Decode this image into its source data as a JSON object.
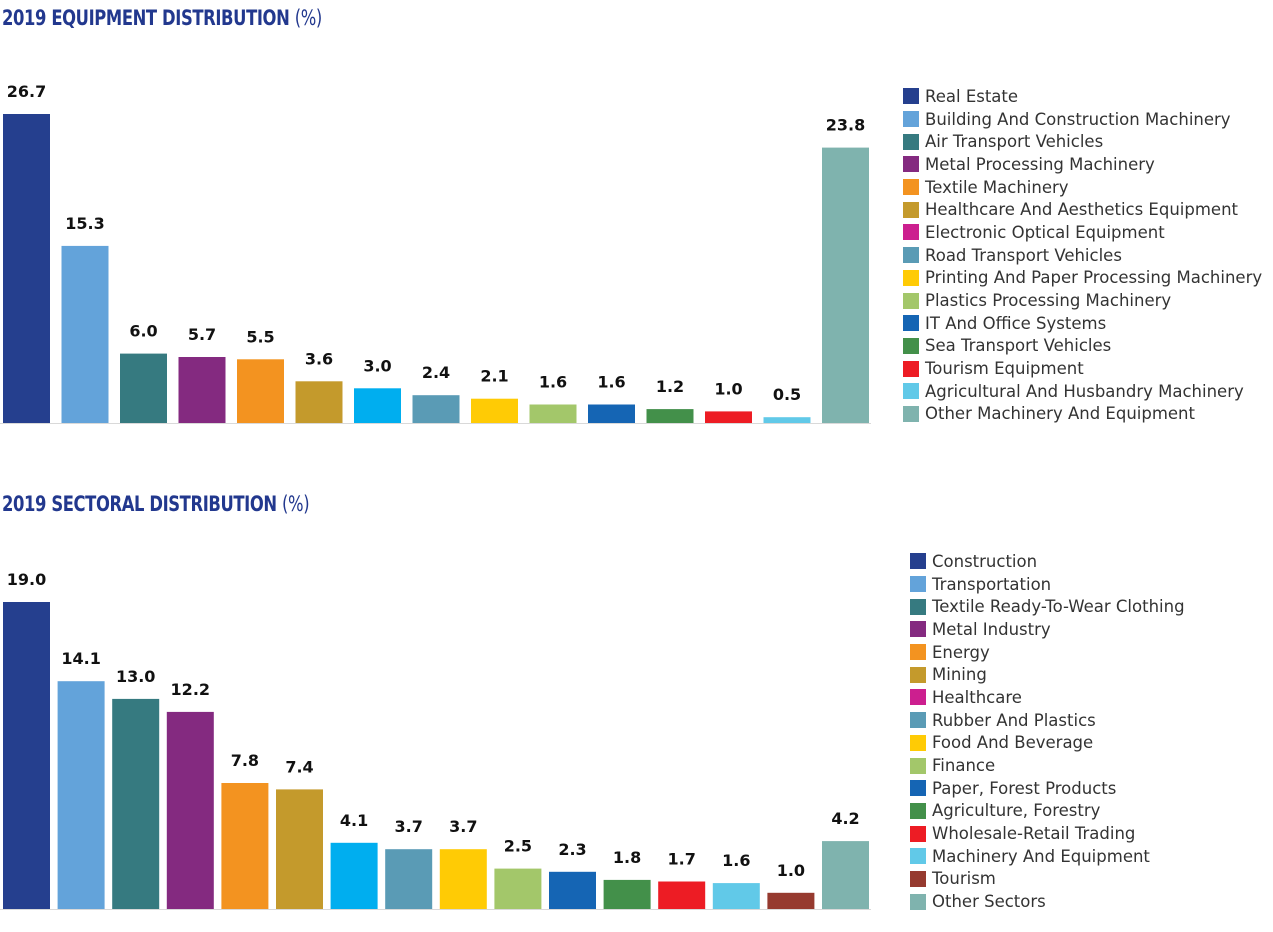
{
  "chart_data": [
    {
      "type": "bar",
      "title": "2019 EQUIPMENT DISTRIBUTION",
      "title_unit": "(%)",
      "categories": [
        "Real Estate",
        "Building And Construction Machinery",
        "Air Transport Vehicles",
        "Metal Processing Machinery",
        "Textile Machinery",
        "Healthcare And Aesthetics Equipment",
        "Electronic Optical Equipment",
        "Road Transport Vehicles",
        "Printing And Paper Processing Machinery",
        "Plastics Processing Machinery",
        "IT And Office Systems",
        "Sea Transport Vehicles",
        "Tourism Equipment",
        "Agricultural And Husbandry Machinery",
        "Other Machinery And Equipment"
      ],
      "values": [
        26.7,
        15.3,
        6.0,
        5.7,
        5.5,
        3.6,
        3.0,
        2.4,
        2.1,
        1.6,
        1.6,
        1.2,
        1.0,
        0.5,
        23.8
      ],
      "value_labels": [
        "26.7",
        "15.3",
        "6.0",
        "5.7",
        "5.5",
        "3.6",
        "3.0",
        "2.4",
        "2.1",
        "1.6",
        "1.6",
        "1.2",
        "1.0",
        "0.5",
        "23.8"
      ],
      "bar_colors": [
        "#253f8e",
        "#63a3da",
        "#367a80",
        "#842a80",
        "#f39320",
        "#c49a2c",
        "#00aeef",
        "#5a9bb5",
        "#ffcb05",
        "#a3c76a",
        "#1565b4",
        "#43904a",
        "#ed1c24",
        "#61c9e8",
        "#7fb3ae"
      ],
      "legend_colors": [
        "#253f8e",
        "#63a3da",
        "#367a80",
        "#842a80",
        "#f39320",
        "#c49a2c",
        "#cc1f8f",
        "#5a9bb5",
        "#ffcb05",
        "#a3c76a",
        "#1565b4",
        "#43904a",
        "#ed1c24",
        "#61c9e8",
        "#7fb3ae"
      ],
      "ylim": [
        0,
        26.7
      ],
      "legend_position": "right"
    },
    {
      "type": "bar",
      "title": "2019 SECTORAL DISTRIBUTION",
      "title_unit": "(%)",
      "categories": [
        "Construction",
        "Transportation",
        "Textile Ready-To-Wear Clothing",
        "Metal Industry",
        "Energy",
        "Mining",
        "Healthcare",
        "Rubber And Plastics",
        "Food And Beverage",
        "Finance",
        "Paper, Forest Products",
        "Agriculture, Forestry",
        "Wholesale-Retail Trading",
        "Machinery And Equipment",
        "Tourism",
        "Other Sectors"
      ],
      "values": [
        19.0,
        14.1,
        13.0,
        12.2,
        7.8,
        7.4,
        4.1,
        3.7,
        3.7,
        2.5,
        2.3,
        1.8,
        1.7,
        1.6,
        1.0,
        4.2
      ],
      "value_labels": [
        "19.0",
        "14.1",
        "13.0",
        "12.2",
        "7.8",
        "7.4",
        "4.1",
        "3.7",
        "3.7",
        "2.5",
        "2.3",
        "1.8",
        "1.7",
        "1.6",
        "1.0",
        "4.2"
      ],
      "bar_colors": [
        "#253f8e",
        "#63a3da",
        "#367a80",
        "#842a80",
        "#f39320",
        "#c49a2c",
        "#00aeef",
        "#5a9bb5",
        "#ffcb05",
        "#a3c76a",
        "#1565b4",
        "#43904a",
        "#ed1c24",
        "#61c9e8",
        "#963a2f",
        "#7fb3ae"
      ],
      "legend_colors": [
        "#253f8e",
        "#63a3da",
        "#367a80",
        "#842a80",
        "#f39320",
        "#c49a2c",
        "#cc1f8f",
        "#5a9bb5",
        "#ffcb05",
        "#a3c76a",
        "#1565b4",
        "#43904a",
        "#ed1c24",
        "#61c9e8",
        "#963a2f",
        "#7fb3ae"
      ],
      "ylim": [
        0,
        19.0
      ],
      "legend_position": "right"
    }
  ]
}
